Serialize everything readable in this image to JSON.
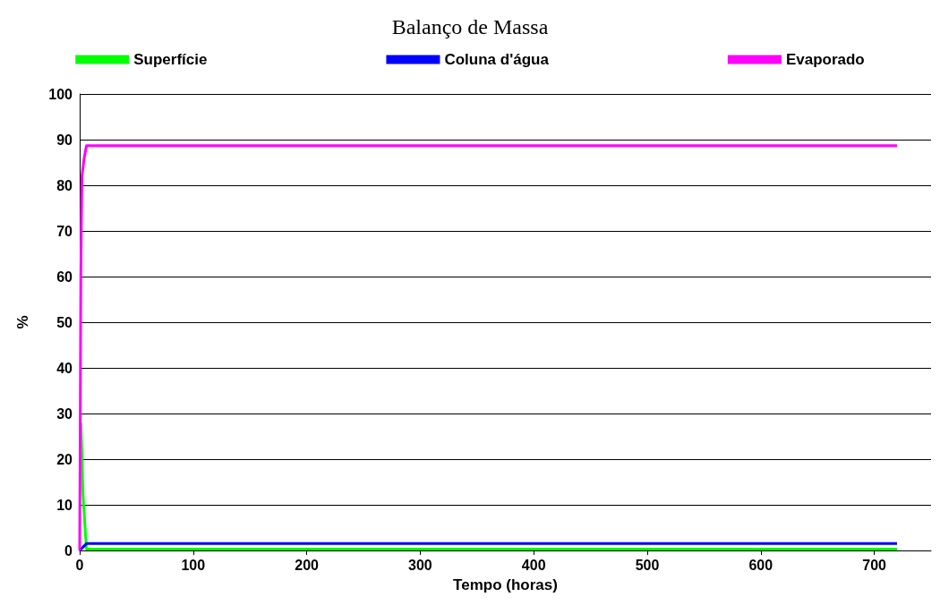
{
  "chart_data": {
    "type": "line",
    "title": "Balanço de Massa",
    "xlabel": "Tempo (horas)",
    "ylabel": "%",
    "xlim": [
      0,
      750
    ],
    "xticks": [
      0,
      100,
      200,
      300,
      400,
      500,
      600,
      700
    ],
    "ylim": [
      0,
      100
    ],
    "yticks": [
      0,
      10,
      20,
      30,
      40,
      50,
      60,
      70,
      80,
      90,
      100
    ],
    "grid": "y",
    "legend": "top",
    "marker": "none",
    "line_style": "solid",
    "series": [
      {
        "name": "Superfície",
        "color": "#00ff00",
        "x": [
          1,
          2,
          3,
          5,
          6,
          720
        ],
        "values": [
          28,
          20,
          12,
          4,
          0.3,
          0.3
        ]
      },
      {
        "name": "Coluna d'água",
        "color": "#0000ff",
        "x": [
          0,
          6,
          720
        ],
        "values": [
          0,
          1.5,
          1.5
        ]
      },
      {
        "name": "Evaporado",
        "color": "#ff00ff",
        "x": [
          0,
          1,
          1.5,
          2,
          4,
          6,
          720
        ],
        "values": [
          0,
          60,
          72,
          82,
          86,
          88.7,
          88.7
        ]
      }
    ]
  }
}
